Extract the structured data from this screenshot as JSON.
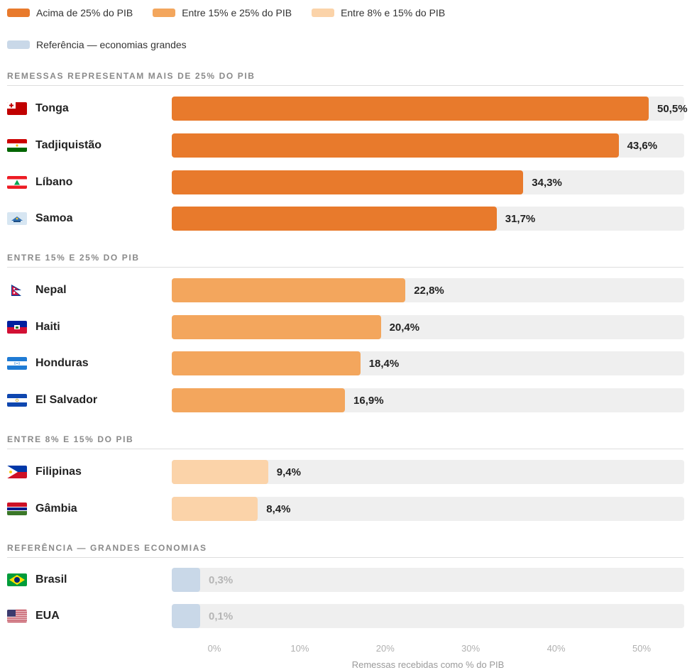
{
  "legend": [
    {
      "label": "Acima de 25% do PIB",
      "color": "#e87a2c"
    },
    {
      "label": "Entre 15% e 25% do PIB",
      "color": "#f3a65d"
    },
    {
      "label": "Entre 8% e 15% do PIB",
      "color": "#fbd3a9"
    },
    {
      "label": "Referência — economias grandes",
      "color": "#c9d8e8"
    }
  ],
  "sections": [
    "REMESSAS REPRESENTAM MAIS DE 25% DO PIB",
    "ENTRE 15% E 25% DO PIB",
    "ENTRE 8% E 15% DO PIB",
    "REFERÊNCIA — GRANDES ECONOMIAS"
  ],
  "chart_data": {
    "type": "bar",
    "orientation": "horizontal",
    "xlabel": "Remessas recebidas como % do PIB",
    "xlim": [
      0,
      50
    ],
    "x_ticks": [
      "0%",
      "10%",
      "20%",
      "30%",
      "40%",
      "50%"
    ],
    "groups": [
      {
        "color": "#e87a2c",
        "items": [
          {
            "country": "Tonga",
            "value": 50.5,
            "label": "50,5%",
            "flag": "tonga-flag"
          },
          {
            "country": "Tadjiquistão",
            "value": 43.6,
            "label": "43,6%",
            "flag": "tajikistan-flag"
          },
          {
            "country": "Líbano",
            "value": 34.3,
            "label": "34,3%",
            "flag": "lebanon-flag"
          },
          {
            "country": "Samoa",
            "value": 31.7,
            "label": "31,7%",
            "flag": "samoa-flag"
          }
        ]
      },
      {
        "color": "#f3a65d",
        "items": [
          {
            "country": "Nepal",
            "value": 22.8,
            "label": "22,8%",
            "flag": "nepal-flag"
          },
          {
            "country": "Haiti",
            "value": 20.4,
            "label": "20,4%",
            "flag": "haiti-flag"
          },
          {
            "country": "Honduras",
            "value": 18.4,
            "label": "18,4%",
            "flag": "honduras-flag"
          },
          {
            "country": "El Salvador",
            "value": 16.9,
            "label": "16,9%",
            "flag": "el-salvador-flag"
          }
        ]
      },
      {
        "color": "#fbd3a9",
        "items": [
          {
            "country": "Filipinas",
            "value": 9.4,
            "label": "9,4%",
            "flag": "philippines-flag"
          },
          {
            "country": "Gâmbia",
            "value": 8.4,
            "label": "8,4%",
            "flag": "gambia-flag"
          }
        ]
      },
      {
        "color": "#c9d8e8",
        "reference": true,
        "items": [
          {
            "country": "Brasil",
            "value": 0.3,
            "label": "0,3%",
            "flag": "brazil-flag"
          },
          {
            "country": "EUA",
            "value": 0.1,
            "label": "0,1%",
            "flag": "usa-flag"
          }
        ]
      }
    ]
  }
}
